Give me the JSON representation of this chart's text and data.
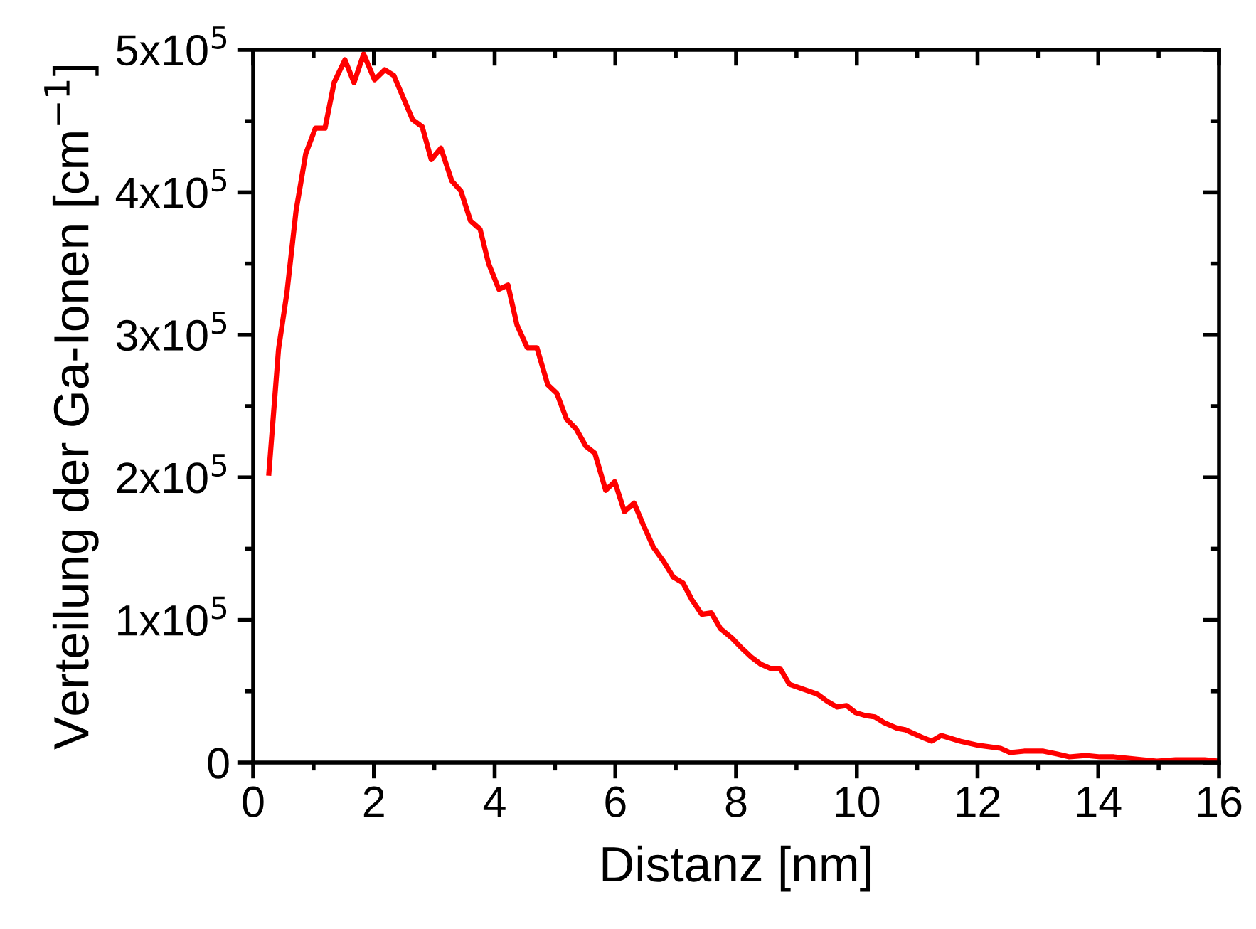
{
  "chart_data": {
    "type": "line",
    "xlabel": "Distanz [nm]",
    "ylabel": "Verteilung der Ga-Ionen [cm$^{−1}$]",
    "xlim": [
      0,
      16
    ],
    "ylim": [
      0,
      500000
    ],
    "xticks": [
      0,
      {
        "value": 1,
        "label": null
      },
      2,
      {
        "value": 3,
        "label": null
      },
      4,
      {
        "value": 5,
        "label": null
      },
      6,
      {
        "value": 7,
        "label": null
      },
      8,
      {
        "value": 9,
        "label": null
      },
      10,
      {
        "value": 11,
        "label": null
      },
      12,
      {
        "value": 13,
        "label": null
      },
      14,
      {
        "value": 15,
        "label": null
      },
      16
    ],
    "yticks": [
      {
        "value": 0,
        "label": "0"
      },
      {
        "value": 50000,
        "label": null
      },
      {
        "value": 100000,
        "label": "1x10$^{5}$"
      },
      {
        "value": 150000,
        "label": null
      },
      {
        "value": 200000,
        "label": "2x10$^{5}$"
      },
      {
        "value": 250000,
        "label": null
      },
      {
        "value": 300000,
        "label": "3x10$^{5}$"
      },
      {
        "value": 350000,
        "label": null
      },
      {
        "value": 400000,
        "label": "4x10$^{5}$"
      },
      {
        "value": 450000,
        "label": null
      },
      {
        "value": 500000,
        "label": "5x10$^{5}$"
      }
    ],
    "grid": false,
    "legend": false,
    "marker": "none",
    "line_style": "solid",
    "series": [
      {
        "color": "#ff0000",
        "x": [
          0.26,
          0.42,
          0.56,
          0.71,
          0.87,
          1.03,
          1.19,
          1.34,
          1.52,
          1.67,
          1.83,
          2.01,
          2.18,
          2.33,
          2.48,
          2.64,
          2.8,
          2.95,
          3.11,
          3.29,
          3.44,
          3.6,
          3.76,
          3.9,
          4.07,
          4.22,
          4.37,
          4.54,
          4.7,
          4.88,
          5.03,
          5.19,
          5.35,
          5.51,
          5.66,
          5.84,
          5.99,
          6.15,
          6.31,
          6.47,
          6.63,
          6.8,
          6.96,
          7.12,
          7.27,
          7.43,
          7.59,
          7.74,
          7.94,
          8.1,
          8.25,
          8.41,
          8.57,
          8.73,
          8.88,
          9.08,
          9.35,
          9.51,
          9.67,
          9.83,
          9.98,
          10.14,
          10.3,
          10.45,
          10.67,
          10.8,
          10.96,
          11.12,
          11.24,
          11.4,
          11.71,
          12.02,
          12.38,
          12.54,
          12.77,
          13.09,
          13.32,
          13.52,
          13.79,
          14.03,
          14.26,
          14.5,
          14.73,
          14.97,
          15.28,
          15.6,
          15.76,
          15.98
        ],
        "values": [
          203000,
          290000,
          330000,
          387000,
          427000,
          445000,
          445000,
          477000,
          493000,
          477000,
          497000,
          479000,
          486000,
          482000,
          467000,
          451000,
          446000,
          423000,
          431000,
          408000,
          401000,
          380000,
          374000,
          350000,
          332000,
          335000,
          307000,
          291000,
          291000,
          265000,
          259000,
          241000,
          234000,
          222000,
          217000,
          191000,
          197000,
          176000,
          182000,
          166000,
          151000,
          141000,
          130000,
          126000,
          114000,
          104000,
          105000,
          94000,
          87000,
          80000,
          74000,
          69000,
          66000,
          66000,
          55000,
          52000,
          48000,
          43000,
          39000,
          40000,
          35000,
          33000,
          32000,
          28000,
          24000,
          23000,
          20000,
          17000,
          15000,
          19000,
          15000,
          12000,
          10000,
          7000,
          8000,
          8000,
          6000,
          4000,
          5000,
          4000,
          4000,
          3000,
          2000,
          1000,
          2000,
          2000,
          2000,
          1000
        ]
      }
    ]
  }
}
